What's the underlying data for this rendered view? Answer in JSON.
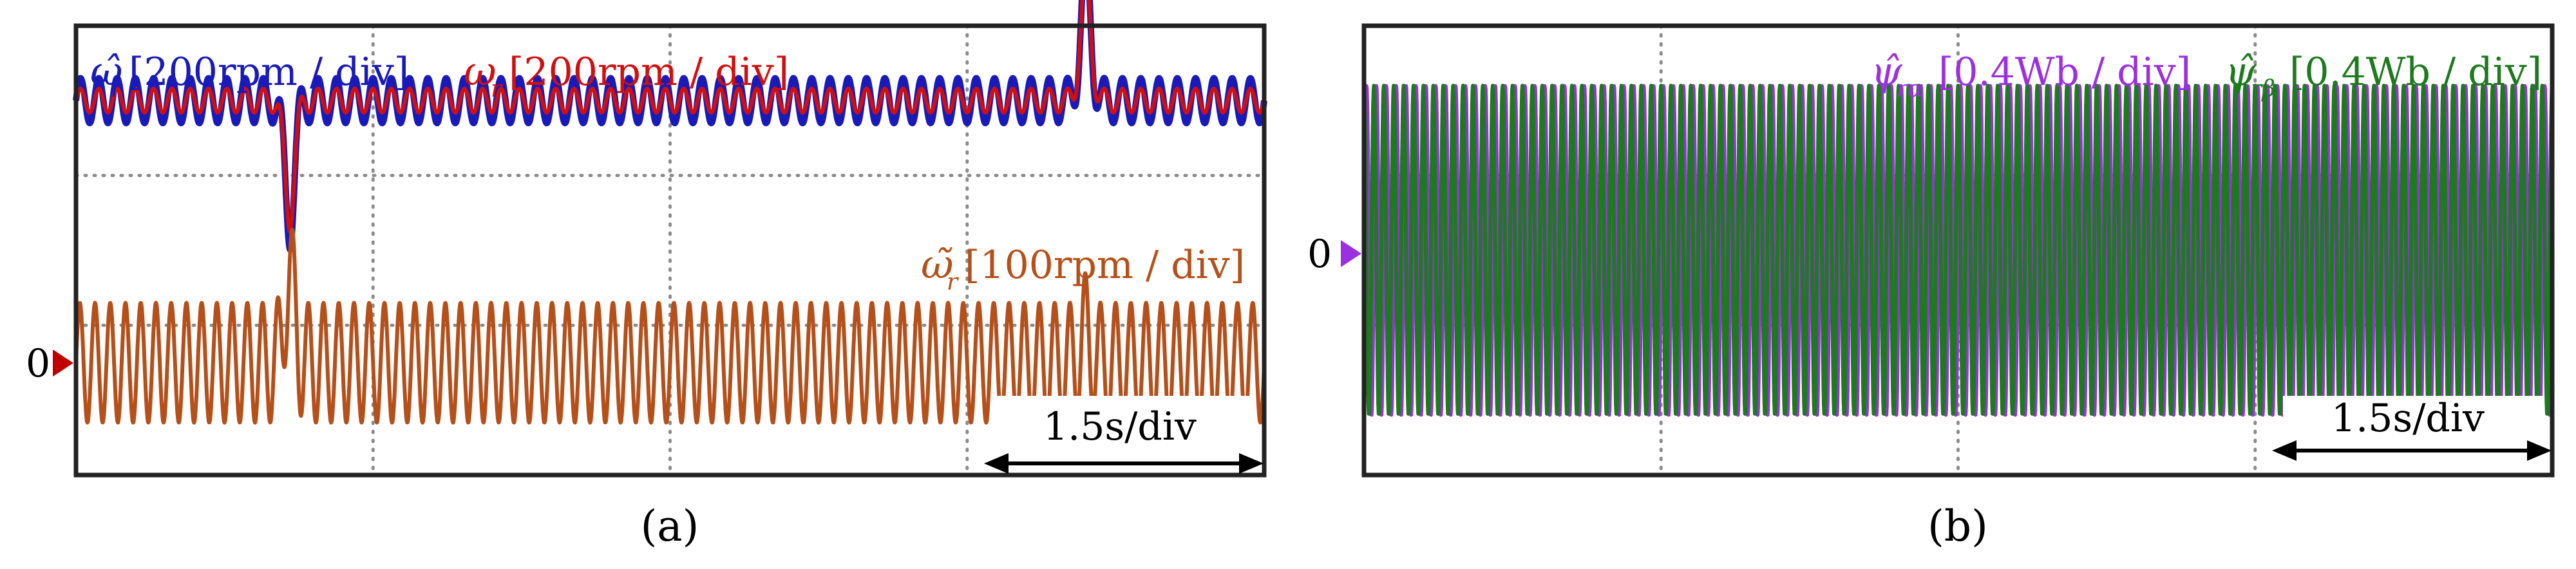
{
  "figure": {
    "panel_a_caption": "(a)",
    "panel_b_caption": "(b)"
  },
  "chart_data": [
    {
      "panel": "a",
      "type": "line",
      "title": "",
      "xlabel": "",
      "ylabel": "",
      "grid": true,
      "x_divisions": 4,
      "y_divisions": 3,
      "time_scale": "1.5s/div",
      "zero_marker_label": "0",
      "zero_marker_color": "#c00000",
      "series": [
        {
          "name": "estimated speed",
          "symbol": "ω̂",
          "subscript": "r",
          "scale": "[200rpm / div]",
          "color": "#1a1ab8",
          "baseline_div": 2.5,
          "ripple_amplitude_div": 0.15,
          "ripple_cycles": 65,
          "transients": [
            {
              "at_fraction": 0.18,
              "peak_div": -0.85
            },
            {
              "at_fraction": 0.85,
              "peak_div": 0.9
            }
          ]
        },
        {
          "name": "actual speed",
          "symbol": "ω",
          "subscript": "r",
          "scale": "[200rpm / div]",
          "color": "#d01010",
          "baseline_div": 2.5,
          "ripple_amplitude_div": 0.08,
          "ripple_cycles": 65,
          "transients": [
            {
              "at_fraction": 0.18,
              "peak_div": -0.8
            },
            {
              "at_fraction": 0.85,
              "peak_div": 0.85
            }
          ]
        },
        {
          "name": "speed error",
          "symbol": "ω̃",
          "subscript": "r",
          "scale": "[100rpm / div]",
          "color": "#b5501a",
          "baseline_div": 0.75,
          "ripple_amplitude_div": 0.4,
          "ripple_cycles": 78,
          "transients": [
            {
              "at_fraction": 0.18,
              "peak_div": 0.6
            },
            {
              "at_fraction": 0.85,
              "peak_div": 0.2
            }
          ]
        }
      ]
    },
    {
      "panel": "b",
      "type": "line",
      "title": "",
      "xlabel": "",
      "ylabel": "",
      "grid": true,
      "x_divisions": 4,
      "y_divisions": 3,
      "time_scale": "1.5s/div",
      "zero_marker_label": "0",
      "zero_marker_color": "#9b30e0",
      "series": [
        {
          "name": "estimated rotor flux alpha",
          "symbol": "ψ̂",
          "subscript": "rα",
          "scale": "[0.4Wb / div]",
          "color": "#9b30e0",
          "baseline_div": 1.5,
          "ripple_amplitude_div": 1.1,
          "ripple_cycles": 120,
          "phase_deg": 0
        },
        {
          "name": "estimated rotor flux beta",
          "symbol": "ψ̂",
          "subscript": "rβ",
          "scale": "[0.4Wb / div]",
          "color": "#1e7a1e",
          "baseline_div": 1.5,
          "ripple_amplitude_div": 1.1,
          "ripple_cycles": 120,
          "phase_deg": 90
        }
      ]
    }
  ]
}
